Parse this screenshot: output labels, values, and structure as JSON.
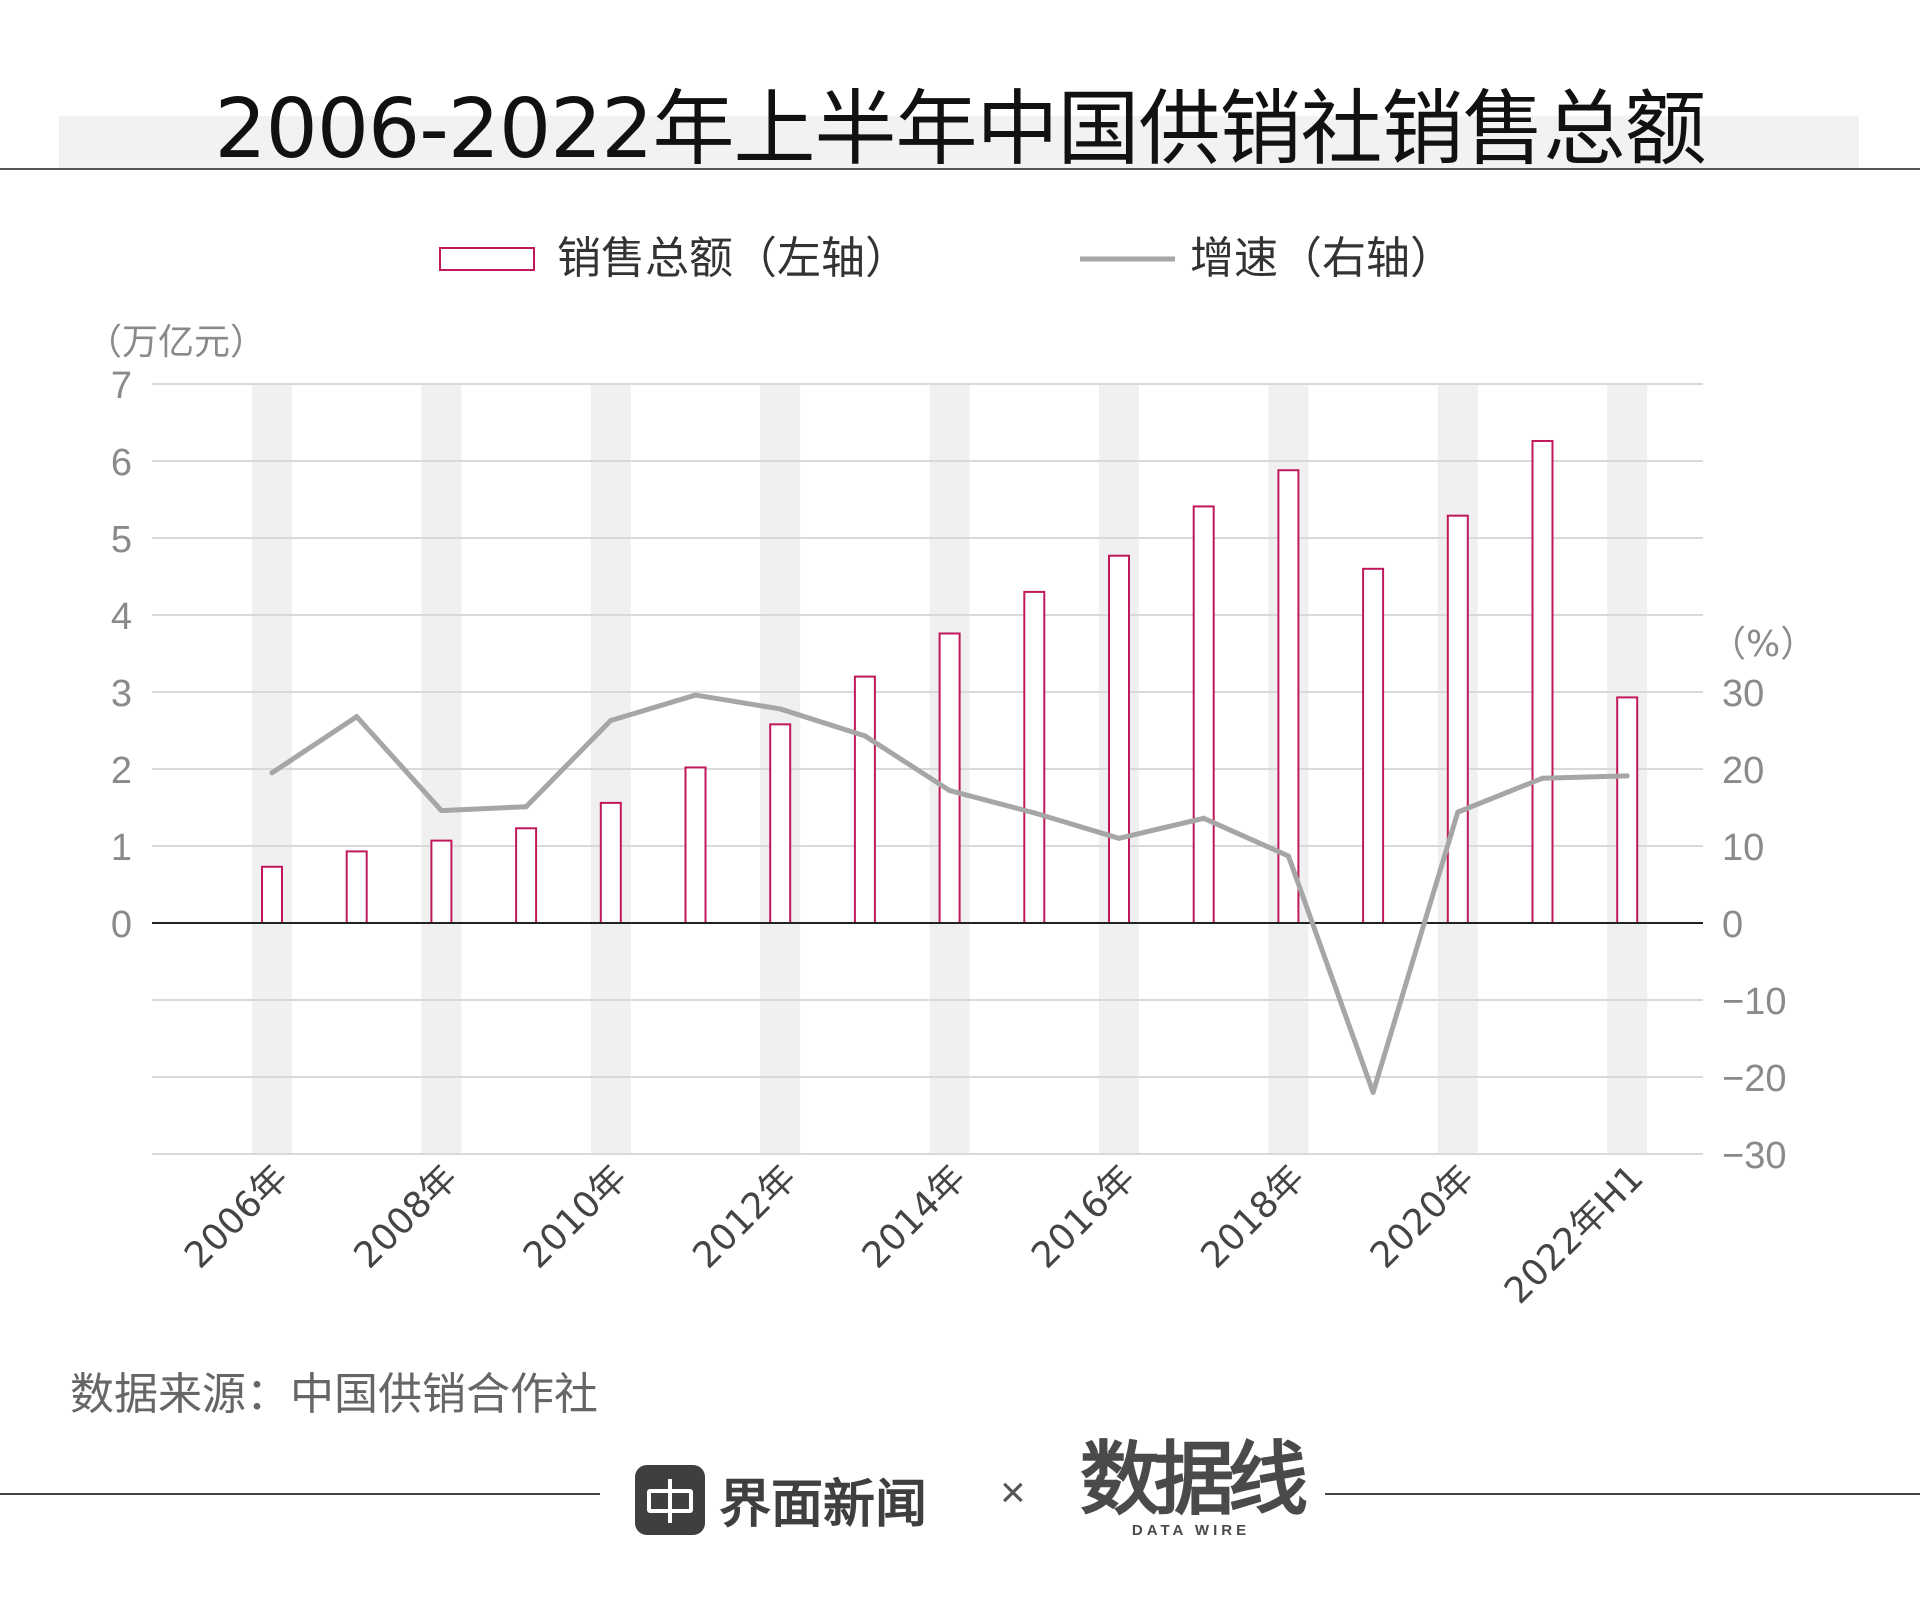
{
  "title": "2006-2022年上半年中国供销社销售总额",
  "source": "数据来源：中国供销合作社",
  "brand": {
    "left_name": "界面新闻",
    "times": "×",
    "right_logo": "数据线",
    "right_sub": "DATA WIRE"
  },
  "colors": {
    "bar_stroke": "#c0185a",
    "line": "#a6a6a6",
    "band": "#f0f0f0",
    "grid": "#d9d9d9"
  },
  "chart_data": {
    "type": "bar+line",
    "categories": [
      "2006年",
      "2007年",
      "2008年",
      "2009年",
      "2010年",
      "2011年",
      "2012年",
      "2013年",
      "2014年",
      "2015年",
      "2016年",
      "2017年",
      "2018年",
      "2019年",
      "2020年",
      "2021年",
      "2022年H1"
    ],
    "x_tick_labels": [
      "2006年",
      "",
      "2008年",
      "",
      "2010年",
      "",
      "2012年",
      "",
      "2014年",
      "",
      "2016年",
      "",
      "2018年",
      "",
      "2020年",
      "",
      "2022年H1"
    ],
    "series": [
      {
        "name": "销售总额（左轴）",
        "type": "bar",
        "axis": "left",
        "values": [
          0.73,
          0.93,
          1.07,
          1.23,
          1.56,
          2.02,
          2.58,
          3.2,
          3.76,
          4.3,
          4.77,
          5.41,
          5.88,
          4.6,
          5.29,
          6.26,
          2.93
        ]
      },
      {
        "name": "增速（右轴）",
        "type": "line",
        "axis": "right",
        "values": [
          19.5,
          26.8,
          14.6,
          15.1,
          26.3,
          29.6,
          27.8,
          24.3,
          17.2,
          14.3,
          11.0,
          13.6,
          8.7,
          -22.0,
          14.4,
          18.8,
          19.1
        ]
      }
    ],
    "left_axis": {
      "unit": "（万亿元）",
      "ylim": [
        -3,
        7
      ],
      "ticks": [
        "0",
        "1",
        "2",
        "3",
        "4",
        "5",
        "6",
        "7"
      ]
    },
    "right_axis": {
      "unit": "（%）",
      "ylim": [
        -30,
        70
      ],
      "ticks": [
        "30",
        "20",
        "10",
        "0",
        "−10",
        "−20",
        "−30"
      ]
    },
    "legend_position": "top-center",
    "grid": true
  }
}
